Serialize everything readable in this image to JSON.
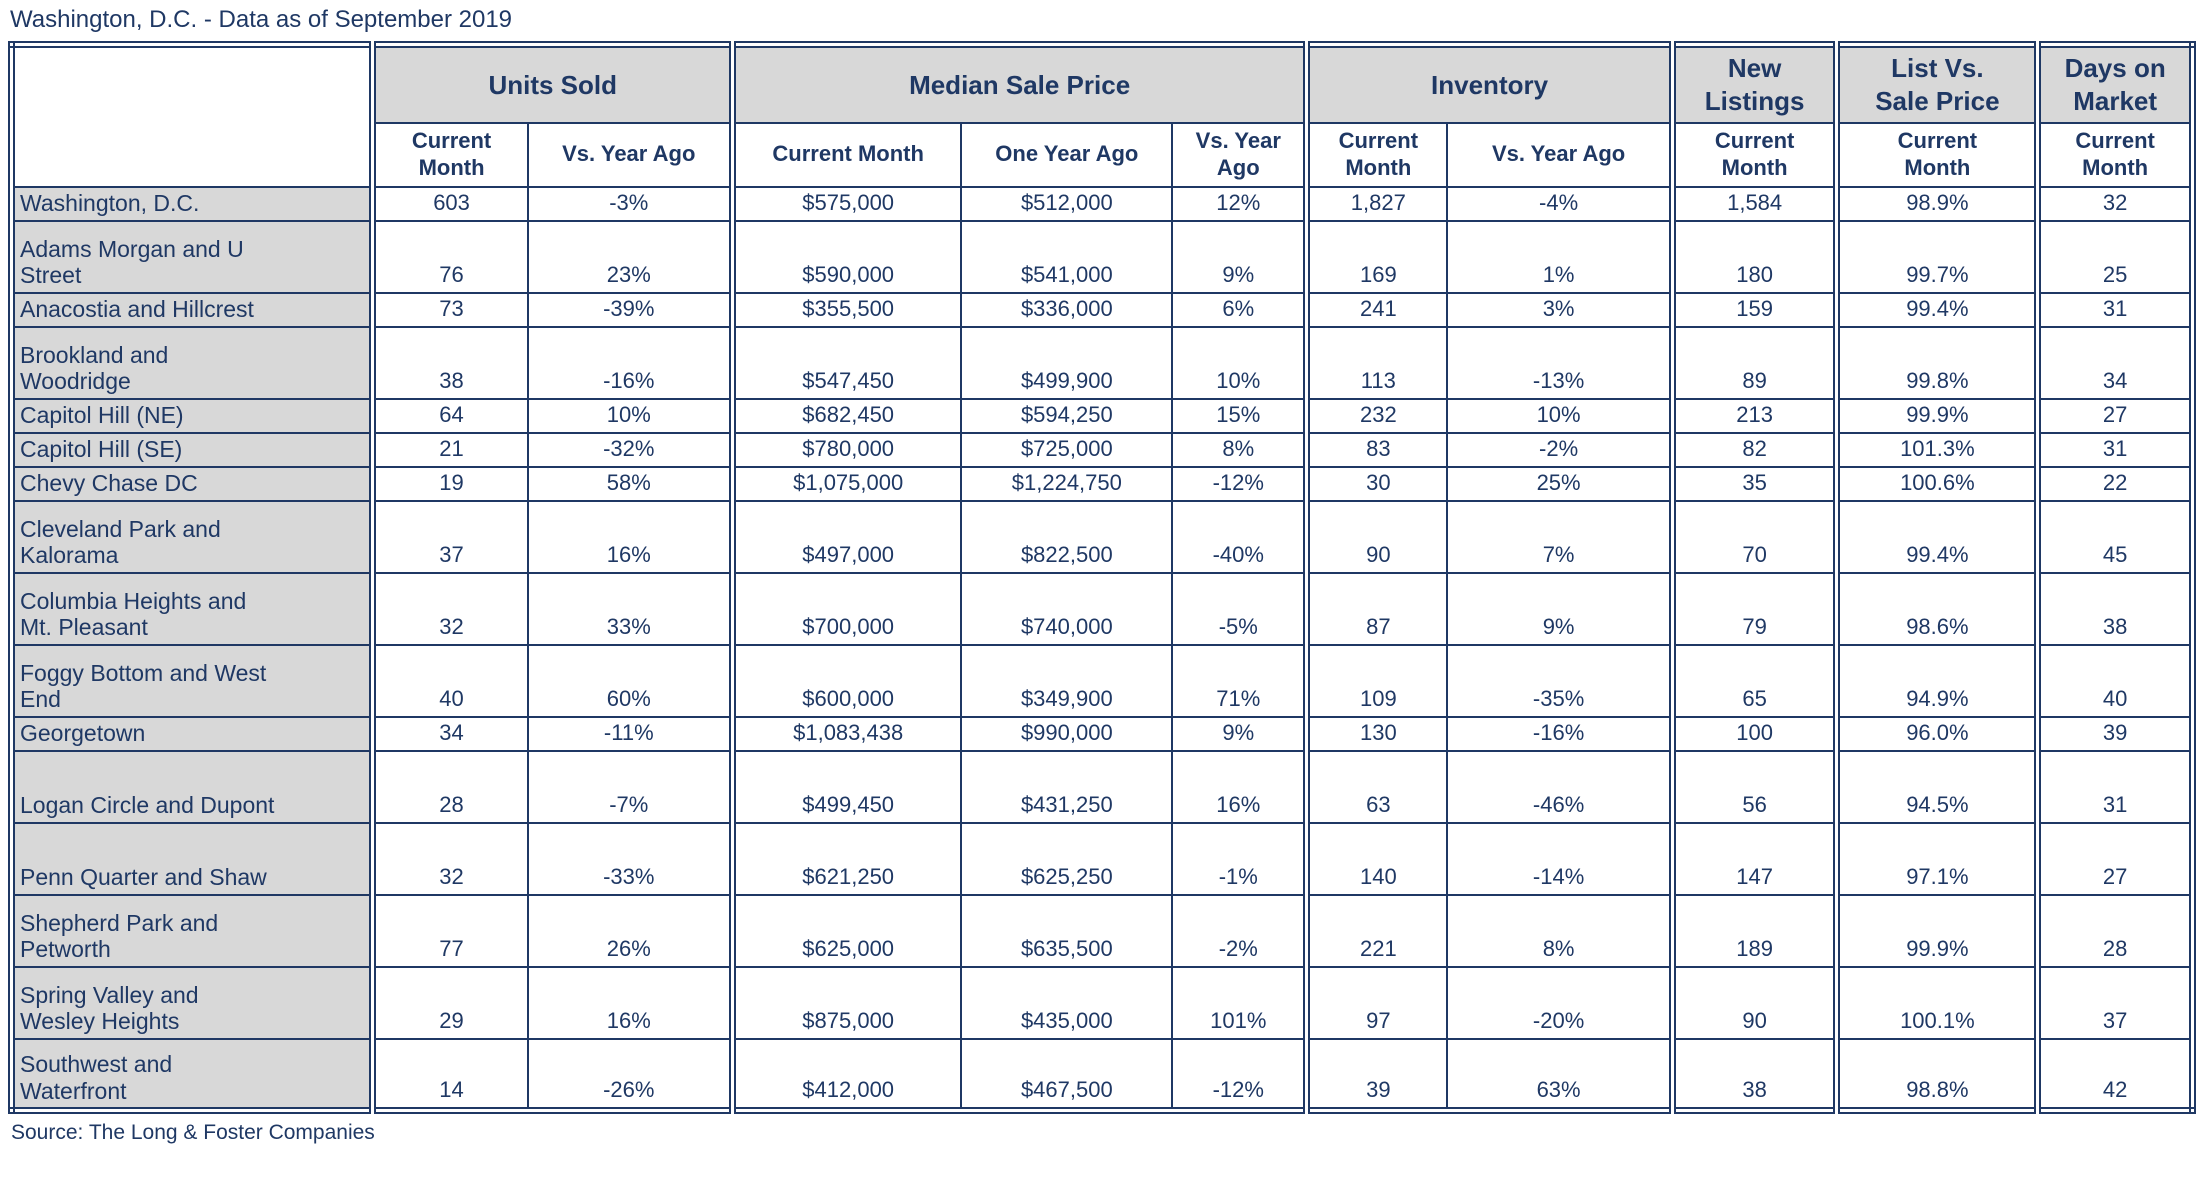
{
  "title": "Washington, D.C. - Data as of September 2019",
  "source": "Source: The Long & Foster Companies",
  "colors": {
    "text_navy": "#1F3864",
    "border_navy": "#1F3864",
    "header_fill": "#D8D8D8",
    "background": "#FFFFFF"
  },
  "table": {
    "groups": [
      {
        "label": "",
        "colspan": 1
      },
      {
        "label": "Units Sold",
        "colspan": 2
      },
      {
        "label": "Median Sale Price",
        "colspan": 3
      },
      {
        "label": "Inventory",
        "colspan": 2
      },
      {
        "label": "New\nListings",
        "colspan": 1
      },
      {
        "label": "List Vs.\nSale Price",
        "colspan": 1
      },
      {
        "label": "Days on\nMarket",
        "colspan": 1
      }
    ],
    "subheaders": [
      "Current\nMonth",
      "Vs. Year Ago",
      "Current Month",
      "One Year Ago",
      "Vs. Year\nAgo",
      "Current\nMonth",
      "Vs. Year Ago",
      "Current\nMonth",
      "Current\nMonth",
      "Current\nMonth"
    ],
    "rows": [
      {
        "label": "Washington, D.C.",
        "tall": false,
        "values": [
          "603",
          "-3%",
          "$575,000",
          "$512,000",
          "12%",
          "1,827",
          "-4%",
          "1,584",
          "98.9%",
          "32"
        ]
      },
      {
        "label": "Adams Morgan and U\nStreet",
        "tall": true,
        "values": [
          "76",
          "23%",
          "$590,000",
          "$541,000",
          "9%",
          "169",
          "1%",
          "180",
          "99.7%",
          "25"
        ]
      },
      {
        "label": "Anacostia and Hillcrest",
        "tall": false,
        "values": [
          "73",
          "-39%",
          "$355,500",
          "$336,000",
          "6%",
          "241",
          "3%",
          "159",
          "99.4%",
          "31"
        ]
      },
      {
        "label": "Brookland and\nWoodridge",
        "tall": true,
        "values": [
          "38",
          "-16%",
          "$547,450",
          "$499,900",
          "10%",
          "113",
          "-13%",
          "89",
          "99.8%",
          "34"
        ]
      },
      {
        "label": "Capitol Hill (NE)",
        "tall": false,
        "values": [
          "64",
          "10%",
          "$682,450",
          "$594,250",
          "15%",
          "232",
          "10%",
          "213",
          "99.9%",
          "27"
        ]
      },
      {
        "label": "Capitol Hill (SE)",
        "tall": false,
        "values": [
          "21",
          "-32%",
          "$780,000",
          "$725,000",
          "8%",
          "83",
          "-2%",
          "82",
          "101.3%",
          "31"
        ]
      },
      {
        "label": "Chevy Chase DC",
        "tall": false,
        "values": [
          "19",
          "58%",
          "$1,075,000",
          "$1,224,750",
          "-12%",
          "30",
          "25%",
          "35",
          "100.6%",
          "22"
        ]
      },
      {
        "label": "Cleveland Park and\nKalorama",
        "tall": true,
        "values": [
          "37",
          "16%",
          "$497,000",
          "$822,500",
          "-40%",
          "90",
          "7%",
          "70",
          "99.4%",
          "45"
        ]
      },
      {
        "label": "Columbia Heights and\nMt. Pleasant",
        "tall": true,
        "values": [
          "32",
          "33%",
          "$700,000",
          "$740,000",
          "-5%",
          "87",
          "9%",
          "79",
          "98.6%",
          "38"
        ]
      },
      {
        "label": "Foggy Bottom and West\nEnd",
        "tall": true,
        "values": [
          "40",
          "60%",
          "$600,000",
          "$349,900",
          "71%",
          "109",
          "-35%",
          "65",
          "94.9%",
          "40"
        ]
      },
      {
        "label": "Georgetown",
        "tall": false,
        "values": [
          "34",
          "-11%",
          "$1,083,438",
          "$990,000",
          "9%",
          "130",
          "-16%",
          "100",
          "96.0%",
          "39"
        ]
      },
      {
        "label": "Logan Circle and Dupont",
        "tall": true,
        "values": [
          "28",
          "-7%",
          "$499,450",
          "$431,250",
          "16%",
          "63",
          "-46%",
          "56",
          "94.5%",
          "31"
        ]
      },
      {
        "label": "Penn Quarter and Shaw",
        "tall": true,
        "values": [
          "32",
          "-33%",
          "$621,250",
          "$625,250",
          "-1%",
          "140",
          "-14%",
          "147",
          "97.1%",
          "27"
        ]
      },
      {
        "label": "Shepherd Park and\nPetworth",
        "tall": true,
        "values": [
          "77",
          "26%",
          "$625,000",
          "$635,500",
          "-2%",
          "221",
          "8%",
          "189",
          "99.9%",
          "28"
        ]
      },
      {
        "label": "Spring Valley and\nWesley Heights",
        "tall": true,
        "values": [
          "29",
          "16%",
          "$875,000",
          "$435,000",
          "101%",
          "97",
          "-20%",
          "90",
          "100.1%",
          "37"
        ]
      },
      {
        "label": "Southwest and\nWaterfront",
        "tall": true,
        "values": [
          "14",
          "-26%",
          "$412,000",
          "$467,500",
          "-12%",
          "39",
          "63%",
          "38",
          "98.8%",
          "42"
        ]
      }
    ]
  }
}
